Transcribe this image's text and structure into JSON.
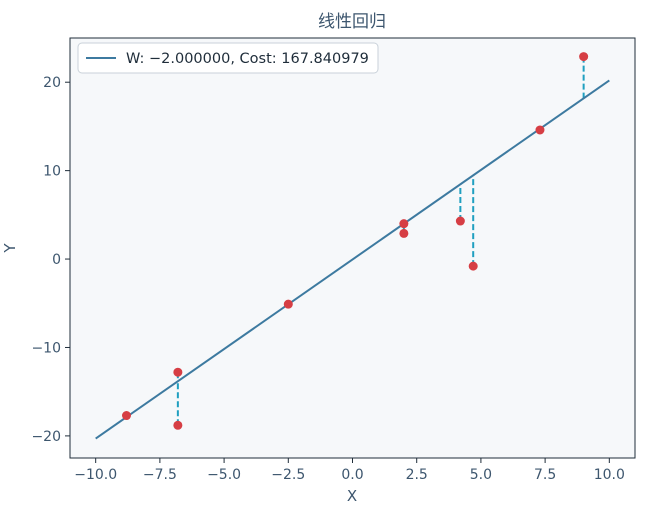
{
  "chart_data": {
    "type": "scatter",
    "title": "线性回归",
    "xlabel": "X",
    "ylabel": "Y",
    "xlim": [
      -11.0,
      11.0
    ],
    "ylim": [
      -22.5,
      25.0
    ],
    "xticks": [
      -10.0,
      -7.5,
      -5.0,
      -2.5,
      0.0,
      2.5,
      5.0,
      7.5,
      10.0
    ],
    "xtick_labels": [
      "−10.0",
      "−7.5",
      "−5.0",
      "−2.5",
      "0.0",
      "2.5",
      "5.0",
      "7.5",
      "10.0"
    ],
    "yticks": [
      -20,
      -10,
      0,
      10,
      20
    ],
    "ytick_labels": [
      "−20",
      "−10",
      "0",
      "10",
      "20"
    ],
    "grid": false,
    "legend_position": "top-left",
    "legend_label": "W: −2.000000, Cost: 167.840979",
    "fit_line": {
      "x": [
        -10.0,
        10.0
      ],
      "y": [
        -20.3,
        20.2
      ]
    },
    "points": [
      {
        "x": -8.8,
        "y": -17.7
      },
      {
        "x": -6.8,
        "y": -12.8
      },
      {
        "x": -6.8,
        "y": -18.8
      },
      {
        "x": -2.5,
        "y": -5.1
      },
      {
        "x": 2.0,
        "y": 4.0
      },
      {
        "x": 2.0,
        "y": 2.9
      },
      {
        "x": 4.2,
        "y": 4.3
      },
      {
        "x": 4.7,
        "y": -0.8
      },
      {
        "x": 7.3,
        "y": 14.6
      },
      {
        "x": 9.0,
        "y": 22.9
      }
    ],
    "colors": {
      "line": "#3d7aa0",
      "points": "#d63e44",
      "residuals": "#1f9fc0",
      "plot_background": "#f6f8fa",
      "axes": "#1f2d3a",
      "text": "#3d566e"
    }
  }
}
